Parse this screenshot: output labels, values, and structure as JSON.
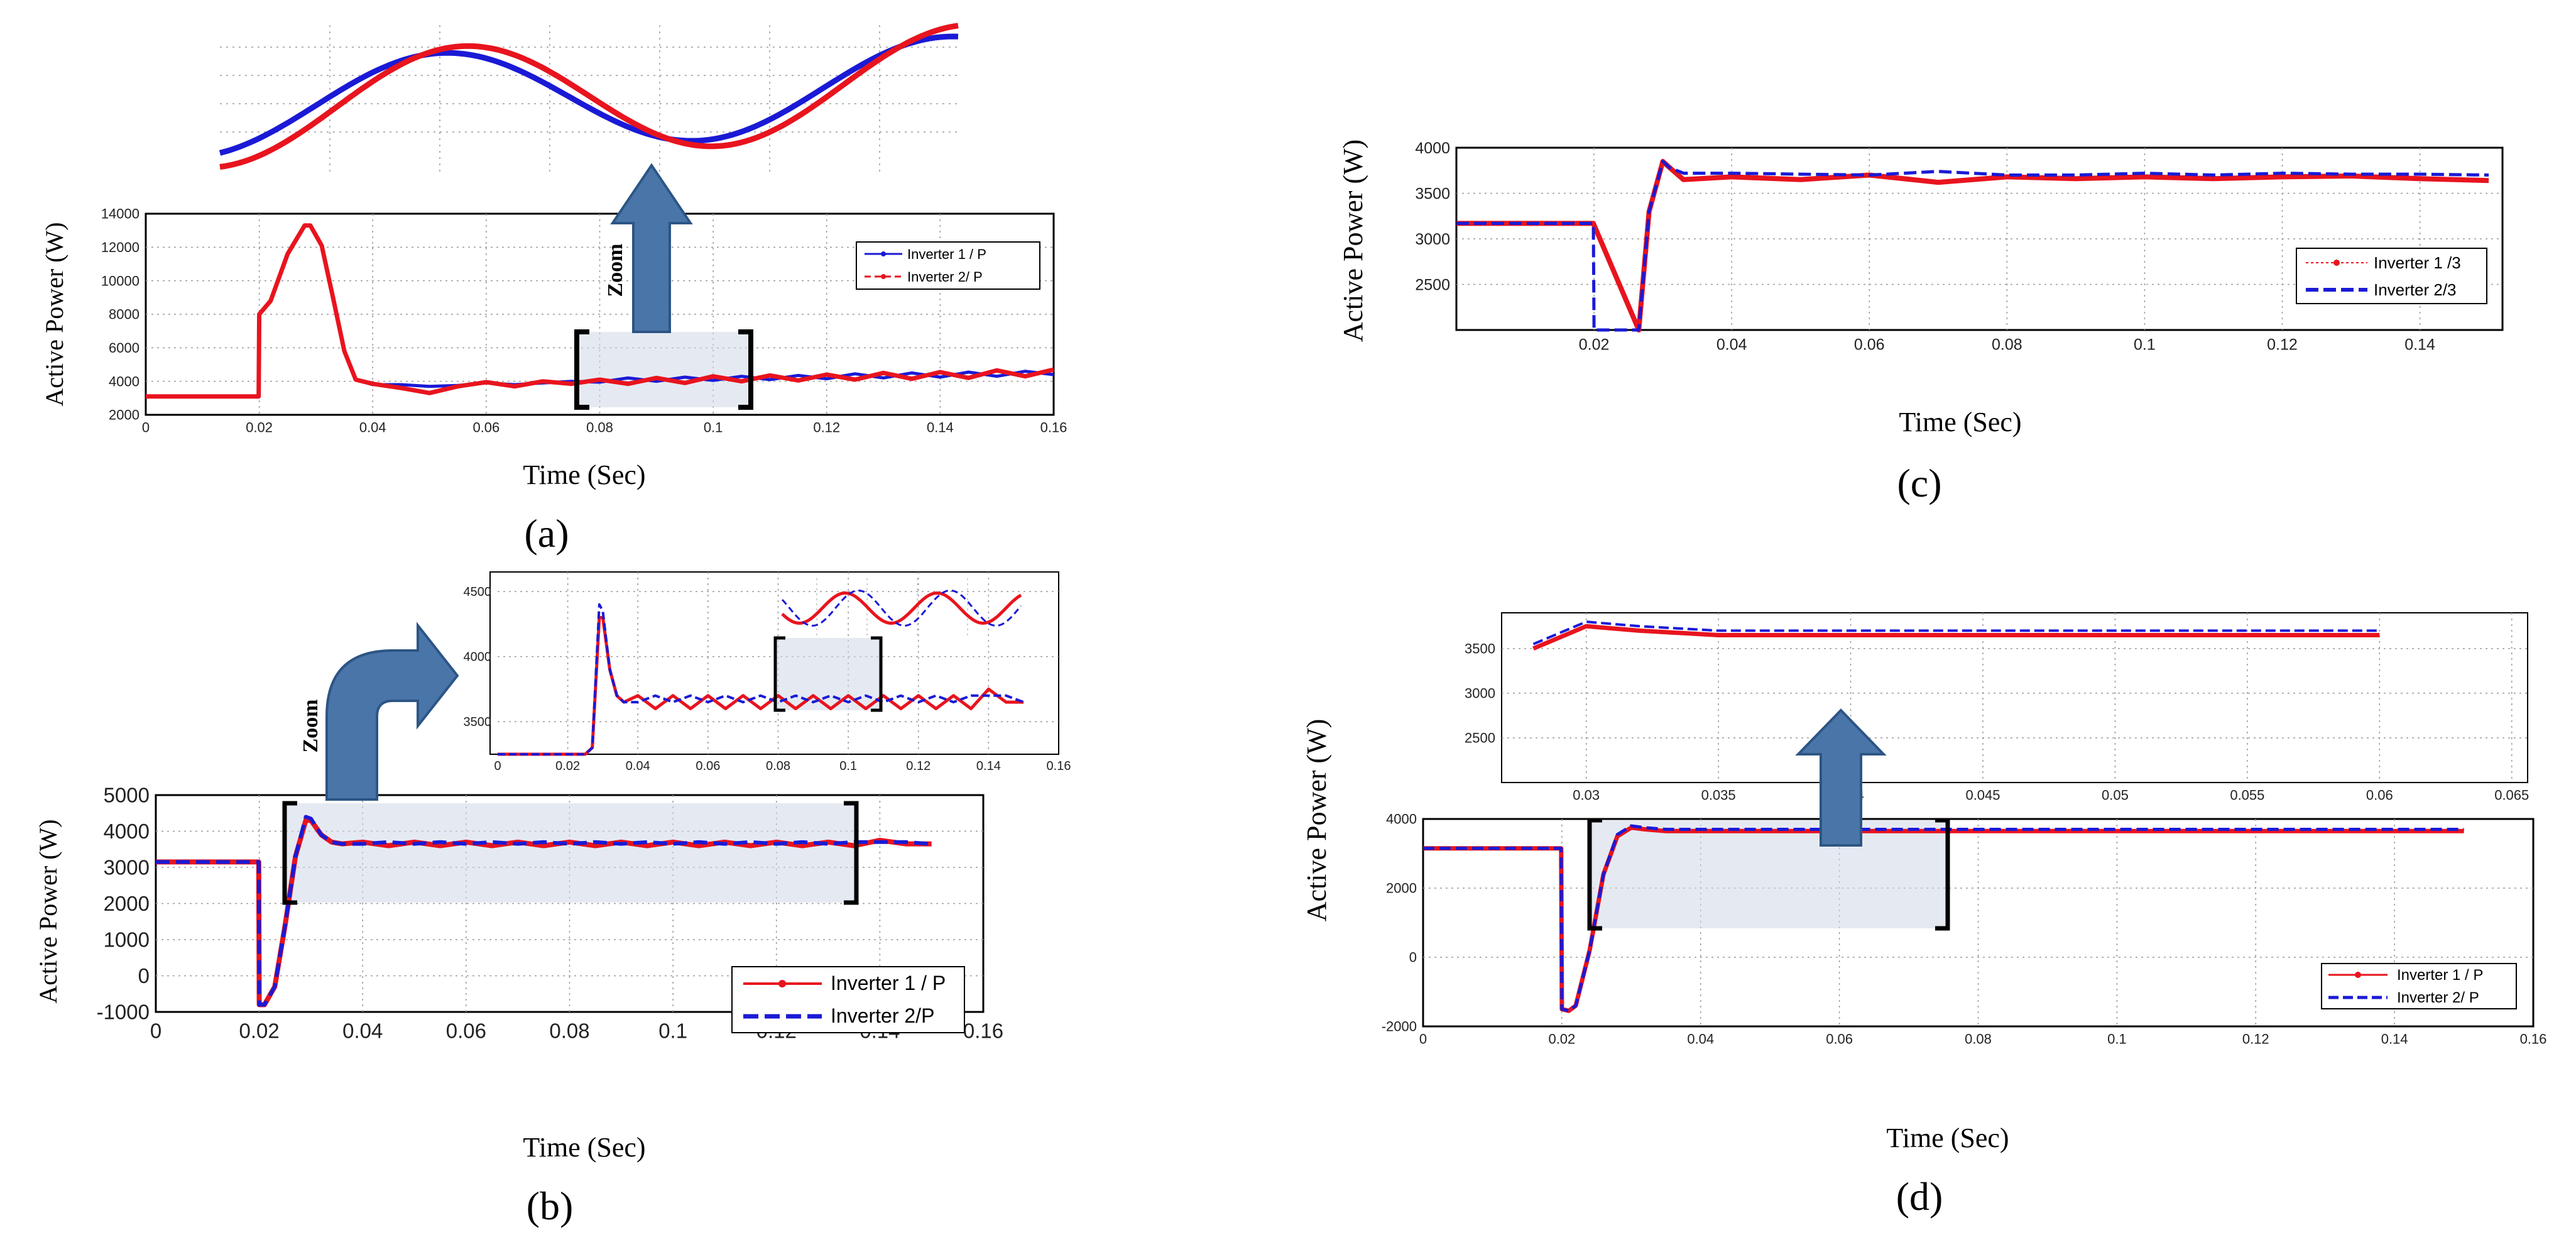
{
  "chart_data": [
    {
      "id": "a",
      "type": "line",
      "panel_label": "(a)",
      "xlabel": "Time (Sec)",
      "ylabel": "Active Power (W)",
      "xlim": [
        0,
        0.16
      ],
      "ylim": [
        2000,
        14000
      ],
      "xticks": [
        "0",
        "0.02",
        "0.04",
        "0.06",
        "0.08",
        "0.1",
        "0.12",
        "0.14",
        "0.16"
      ],
      "yticks": [
        "2000",
        "4000",
        "6000",
        "8000",
        "10000",
        "12000",
        "14000"
      ],
      "legend": [
        "Inverter 1 / P",
        "Inverter 2/ P"
      ],
      "legend_position": "right",
      "zoom_label": "Zoom",
      "zoom_window_x": [
        0.077,
        0.107
      ],
      "zoom_inset": {
        "x_range": [
          0.08,
          0.107
        ],
        "note": "enlarged view of the oscillation, no axis labels"
      },
      "series": [
        {
          "name": "Inverter 1 / P",
          "color": "#1a1ad6",
          "x": [
            0,
            0.0199,
            0.02,
            0.022,
            0.025,
            0.028,
            0.029,
            0.031,
            0.033,
            0.035,
            0.037,
            0.04,
            0.045,
            0.05,
            0.055,
            0.06,
            0.065,
            0.07,
            0.075,
            0.08,
            0.085,
            0.09,
            0.095,
            0.1,
            0.105,
            0.11,
            0.115,
            0.12,
            0.125,
            0.13,
            0.135,
            0.14,
            0.145,
            0.15,
            0.155,
            0.16
          ],
          "y": [
            3100,
            3100,
            8000,
            8800,
            11600,
            13300,
            13300,
            12100,
            9000,
            5800,
            4100,
            3800,
            3800,
            3700,
            3750,
            3900,
            3800,
            3900,
            4000,
            3950,
            4200,
            4000,
            4250,
            4050,
            4300,
            4100,
            4350,
            4150,
            4450,
            4200,
            4500,
            4250,
            4550,
            4300,
            4600,
            4400
          ]
        },
        {
          "name": "Inverter 2/ P",
          "color": "#e8141e",
          "x": [
            0,
            0.0199,
            0.02,
            0.022,
            0.025,
            0.028,
            0.029,
            0.031,
            0.033,
            0.035,
            0.037,
            0.04,
            0.045,
            0.05,
            0.055,
            0.06,
            0.065,
            0.07,
            0.075,
            0.08,
            0.085,
            0.09,
            0.095,
            0.1,
            0.105,
            0.11,
            0.115,
            0.12,
            0.125,
            0.13,
            0.135,
            0.14,
            0.145,
            0.15,
            0.155,
            0.16
          ],
          "y": [
            3100,
            3100,
            8000,
            8800,
            11600,
            13300,
            13300,
            12100,
            9000,
            5800,
            4100,
            3850,
            3600,
            3300,
            3700,
            3950,
            3700,
            4000,
            3850,
            4100,
            3850,
            4200,
            3900,
            4300,
            4000,
            4350,
            4050,
            4400,
            4100,
            4500,
            4150,
            4550,
            4200,
            4650,
            4300,
            4700
          ]
        }
      ]
    },
    {
      "id": "b",
      "type": "line",
      "panel_label": "(b)",
      "xlabel": "Time (Sec)",
      "ylabel": "Active Power (W)",
      "xlim": [
        0,
        0.16
      ],
      "ylim": [
        -1000,
        5000
      ],
      "xticks": [
        "0",
        "0.02",
        "0.04",
        "0.06",
        "0.08",
        "0.1",
        "0.12",
        "0.14",
        "0.16"
      ],
      "yticks": [
        "-1000",
        "0",
        "1000",
        "2000",
        "3000",
        "4000",
        "5000"
      ],
      "legend": [
        "Inverter 1 / P",
        "Inverter 2/P"
      ],
      "legend_position": "bottom-right",
      "zoom_label": "Zoom",
      "zoom_window_x": [
        0.025,
        0.135
      ],
      "series": [
        {
          "name": "Inverter 1 / P",
          "color": "#e8141e",
          "x": [
            0,
            0.0199,
            0.02,
            0.021,
            0.023,
            0.025,
            0.027,
            0.029,
            0.03,
            0.032,
            0.034,
            0.036,
            0.04,
            0.045,
            0.05,
            0.055,
            0.06,
            0.065,
            0.07,
            0.075,
            0.08,
            0.085,
            0.09,
            0.095,
            0.1,
            0.105,
            0.11,
            0.115,
            0.12,
            0.125,
            0.13,
            0.135,
            0.14,
            0.145,
            0.15
          ],
          "y": [
            3150,
            3150,
            -800,
            -800,
            -300,
            1400,
            3300,
            4300,
            4300,
            3900,
            3700,
            3650,
            3700,
            3600,
            3700,
            3600,
            3700,
            3600,
            3700,
            3600,
            3700,
            3600,
            3700,
            3600,
            3700,
            3600,
            3700,
            3600,
            3700,
            3600,
            3700,
            3600,
            3750,
            3650,
            3650
          ]
        },
        {
          "name": "Inverter 2/P",
          "color": "#1a1ad6",
          "x": [
            0,
            0.0199,
            0.02,
            0.021,
            0.023,
            0.025,
            0.027,
            0.029,
            0.03,
            0.032,
            0.034,
            0.036,
            0.04,
            0.045,
            0.05,
            0.055,
            0.06,
            0.065,
            0.07,
            0.075,
            0.08,
            0.085,
            0.09,
            0.095,
            0.1,
            0.105,
            0.11,
            0.115,
            0.12,
            0.125,
            0.13,
            0.135,
            0.14,
            0.145,
            0.15
          ],
          "y": [
            3150,
            3150,
            -800,
            -800,
            -300,
            1400,
            3300,
            4400,
            4350,
            3900,
            3700,
            3650,
            3650,
            3700,
            3650,
            3700,
            3650,
            3700,
            3650,
            3700,
            3650,
            3700,
            3650,
            3700,
            3650,
            3700,
            3650,
            3700,
            3650,
            3700,
            3650,
            3700,
            3700,
            3700,
            3650
          ]
        }
      ],
      "inset": {
        "xlim": [
          0,
          0.16
        ],
        "ylim": [
          3250,
          4650
        ],
        "xticks": [
          "0",
          "0.02",
          "0.04",
          "0.06",
          "0.08",
          "0.1",
          "0.12",
          "0.14",
          "0.16"
        ],
        "yticks": [
          "3500",
          "4000",
          "4500"
        ],
        "zoom_window_x": [
          0.081,
          0.11
        ]
      }
    },
    {
      "id": "c",
      "type": "line",
      "panel_label": "(c)",
      "xlabel": "Time (Sec)",
      "ylabel": "Active Power (W)",
      "xlim": [
        0,
        0.152
      ],
      "ylim": [
        2000,
        4000
      ],
      "xticks": [
        "0.02",
        "0.04",
        "0.06",
        "0.08",
        "0.1",
        "0.12",
        "0.14"
      ],
      "yticks": [
        "2500",
        "3000",
        "3500",
        "4000"
      ],
      "legend": [
        "Inverter 1 /3",
        "Inverter 2/3"
      ],
      "legend_position": "right",
      "series": [
        {
          "name": "Inverter 1 /3",
          "color": "#e8141e",
          "x": [
            0,
            0.0199,
            0.0265,
            0.028,
            0.03,
            0.031,
            0.033,
            0.04,
            0.05,
            0.06,
            0.07,
            0.08,
            0.09,
            0.1,
            0.11,
            0.12,
            0.13,
            0.14,
            0.15
          ],
          "y": [
            3170,
            3170,
            2000,
            3300,
            3850,
            3780,
            3650,
            3680,
            3650,
            3700,
            3620,
            3680,
            3660,
            3680,
            3660,
            3680,
            3690,
            3660,
            3640
          ]
        },
        {
          "name": "Inverter 2/3",
          "color": "#1a1ad6",
          "x": [
            0,
            0.0199,
            0.02,
            0.0265,
            0.028,
            0.03,
            0.031,
            0.033,
            0.04,
            0.05,
            0.06,
            0.07,
            0.08,
            0.09,
            0.1,
            0.11,
            0.12,
            0.13,
            0.14,
            0.15
          ],
          "y": [
            3170,
            3170,
            2000,
            2000,
            3300,
            3850,
            3780,
            3720,
            3720,
            3710,
            3700,
            3740,
            3700,
            3700,
            3720,
            3700,
            3720,
            3710,
            3710,
            3700
          ]
        }
      ]
    },
    {
      "id": "d",
      "type": "line",
      "panel_label": "(d)",
      "xlabel": "Time (Sec)",
      "ylabel": "Active Power (W)",
      "xlim": [
        0,
        0.16
      ],
      "ylim": [
        -2000,
        4000
      ],
      "xticks": [
        "0",
        "0.02",
        "0.04",
        "0.06",
        "0.08",
        "0.1",
        "0.12",
        "0.14",
        "0.16"
      ],
      "yticks": [
        "-2000",
        "0",
        "2000",
        "4000"
      ],
      "legend": [
        "Inverter 1 / P",
        "Inverter 2/ P"
      ],
      "legend_position": "bottom-right",
      "zoom_window_x": [
        0.024,
        0.075
      ],
      "series": [
        {
          "name": "Inverter 1 / P",
          "color": "#e8141e",
          "x": [
            0,
            0.0199,
            0.02,
            0.021,
            0.022,
            0.024,
            0.026,
            0.028,
            0.03,
            0.032,
            0.035,
            0.04,
            0.05,
            0.06,
            0.07,
            0.08,
            0.09,
            0.1,
            0.11,
            0.12,
            0.13,
            0.14,
            0.15
          ],
          "y": [
            3150,
            3150,
            -1500,
            -1550,
            -1400,
            200,
            2400,
            3500,
            3750,
            3700,
            3650,
            3650,
            3650,
            3650,
            3650,
            3650,
            3650,
            3650,
            3650,
            3650,
            3650,
            3650,
            3650
          ]
        },
        {
          "name": "Inverter 2/ P",
          "color": "#1a1ad6",
          "x": [
            0,
            0.0199,
            0.02,
            0.021,
            0.022,
            0.024,
            0.026,
            0.028,
            0.03,
            0.032,
            0.035,
            0.04,
            0.05,
            0.06,
            0.07,
            0.08,
            0.09,
            0.1,
            0.11,
            0.12,
            0.13,
            0.14,
            0.15
          ],
          "y": [
            3150,
            3150,
            -1500,
            -1550,
            -1400,
            200,
            2400,
            3550,
            3800,
            3750,
            3700,
            3700,
            3700,
            3700,
            3700,
            3700,
            3700,
            3700,
            3700,
            3700,
            3700,
            3700,
            3700
          ]
        }
      ],
      "inset": {
        "xlim": [
          0.0268,
          0.0656
        ],
        "ylim": [
          2000,
          3900
        ],
        "xticks": [
          "0.03",
          "0.035",
          "0.04",
          "0.045",
          "0.05",
          "0.055",
          "0.06",
          "0.065"
        ],
        "yticks": [
          "2500",
          "3000",
          "3500"
        ]
      }
    }
  ]
}
